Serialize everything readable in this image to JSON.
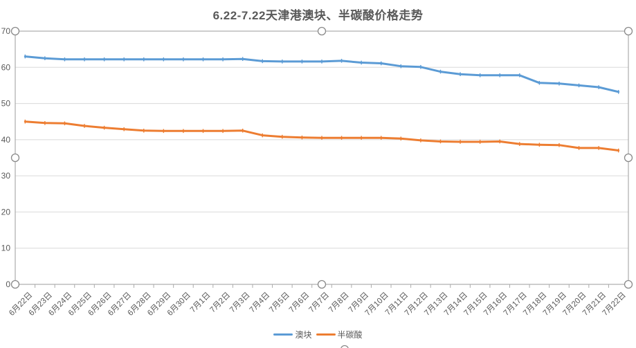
{
  "chart_data": {
    "type": "line",
    "title": "6.22-7.22天津港澳块、半碳酸价格走势",
    "categories": [
      "6月22日",
      "6月23日",
      "6月24日",
      "6月25日",
      "6月26日",
      "6月27日",
      "6月28日",
      "6月29日",
      "6月30日",
      "7月1日",
      "7月2日",
      "7月3日",
      "7月4日",
      "7月5日",
      "7月6日",
      "7月7日",
      "7月8日",
      "7月9日",
      "7月10日",
      "7月11日",
      "7月12日",
      "7月13日",
      "7月14日",
      "7月15日",
      "7月16日",
      "7月17日",
      "7月18日",
      "7月19日",
      "7月20日",
      "7月21日",
      "7月22日"
    ],
    "series": [
      {
        "name": "澳块",
        "color": "#5B9BD5",
        "values": [
          63,
          62.5,
          62.2,
          62.2,
          62.2,
          62.2,
          62.2,
          62.2,
          62.2,
          62.2,
          62.2,
          62.3,
          61.7,
          61.6,
          61.6,
          61.6,
          61.8,
          61.3,
          61.1,
          60.3,
          60.1,
          58.8,
          58.1,
          57.8,
          57.8,
          57.8,
          55.7,
          55.5,
          55.0,
          54.5,
          53.2
        ]
      },
      {
        "name": "半碳酸",
        "color": "#ED7D31",
        "values": [
          45,
          44.6,
          44.5,
          43.8,
          43.3,
          42.9,
          42.5,
          42.4,
          42.4,
          42.4,
          42.4,
          42.5,
          41.2,
          40.8,
          40.6,
          40.5,
          40.5,
          40.5,
          40.5,
          40.3,
          39.8,
          39.5,
          39.4,
          39.4,
          39.5,
          38.8,
          38.6,
          38.5,
          37.7,
          37.7,
          37.0
        ]
      }
    ],
    "xlabel": "",
    "ylabel": "",
    "ylim": [
      0,
      70
    ],
    "yticks": [
      0,
      10,
      20,
      30,
      40,
      50,
      60,
      70
    ],
    "grid": true,
    "legend_position": "bottom",
    "selection_state": "chart-selected"
  },
  "style": {
    "grid_color": "#D9D9D9",
    "border_color": "#ACACAC",
    "tick_color": "#ACACAC",
    "label_color": "#595959",
    "handle_stroke": "#8A8A8A",
    "handle_fill": "#FFFFFF",
    "background": "#FFFFFF"
  }
}
